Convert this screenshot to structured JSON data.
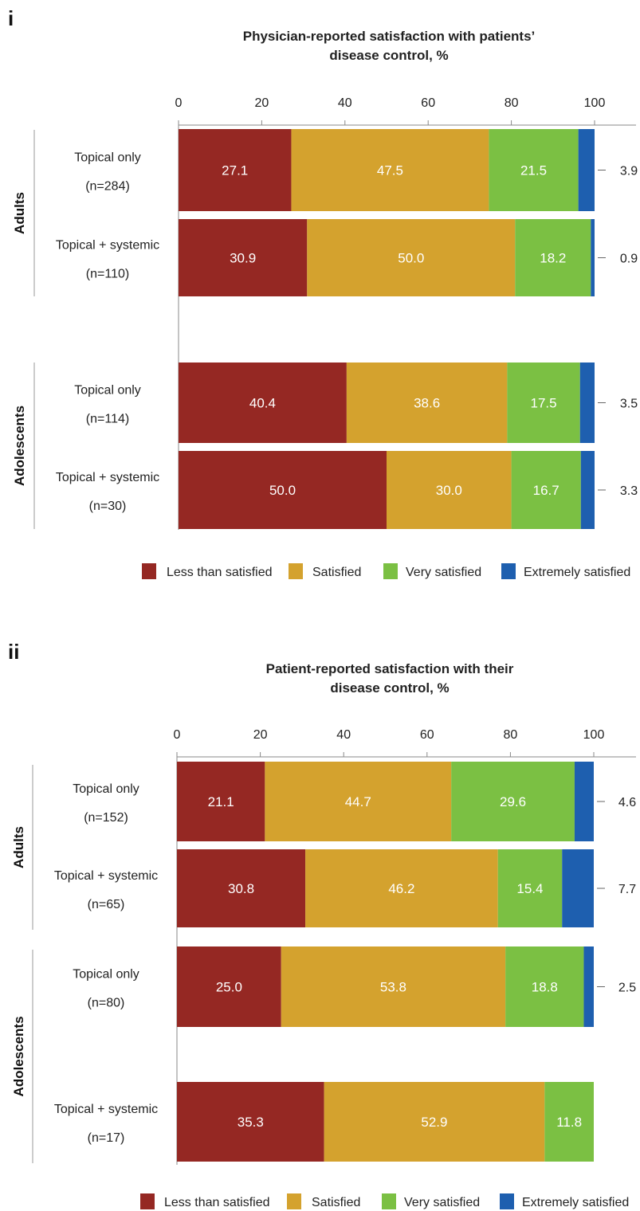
{
  "chart_data": [
    {
      "panel": "i",
      "type": "bar",
      "orientation": "horizontal",
      "stacked": true,
      "title": [
        "Physician-reported satisfaction with patients’",
        "disease control, %"
      ],
      "xlim": [
        0,
        100
      ],
      "xticks": [
        "0",
        "20",
        "40",
        "60",
        "80",
        "100"
      ],
      "legend": {
        "placement": "bottom",
        "entries": [
          "Less than satisfied",
          "Satisfied",
          "Very satisfied",
          "Extremely satisfied"
        ]
      },
      "groups": [
        {
          "name": "Adults",
          "rows": [
            {
              "label": "Topical only",
              "n": "(n=284)",
              "values": [
                27.1,
                47.5,
                21.5,
                3.9
              ],
              "labels": [
                "27.1",
                "47.5",
                "21.5",
                "3.9"
              ]
            },
            {
              "label": "Topical + systemic",
              "n": "(n=110)",
              "values": [
                30.9,
                50.0,
                18.2,
                0.9
              ],
              "labels": [
                "30.9",
                "50.0",
                "18.2",
                "0.9"
              ]
            }
          ]
        },
        {
          "name": "Adolescents",
          "rows": [
            {
              "label": "Topical only",
              "n": "(n=114)",
              "values": [
                40.4,
                38.6,
                17.5,
                3.5
              ],
              "labels": [
                "40.4",
                "38.6",
                "17.5",
                "3.5"
              ]
            },
            {
              "label": "Topical + systemic",
              "n": "(n=30)",
              "values": [
                50.0,
                30.0,
                16.7,
                3.3
              ],
              "labels": [
                "50.0",
                "30.0",
                "16.7",
                "3.3"
              ]
            }
          ]
        }
      ]
    },
    {
      "panel": "ii",
      "type": "bar",
      "orientation": "horizontal",
      "stacked": true,
      "title": [
        "Patient-reported satisfaction with their",
        "disease control, %"
      ],
      "xlim": [
        0,
        100
      ],
      "xticks": [
        "0",
        "20",
        "40",
        "60",
        "80",
        "100"
      ],
      "legend": {
        "placement": "bottom",
        "entries": [
          "Less than satisfied",
          "Satisfied",
          "Very satisfied",
          "Extremely satisfied"
        ]
      },
      "groups": [
        {
          "name": "Adults",
          "rows": [
            {
              "label": "Topical only",
              "n": "(n=152)",
              "values": [
                21.1,
                44.7,
                29.6,
                4.6
              ],
              "labels": [
                "21.1",
                "44.7",
                "29.6",
                "4.6"
              ]
            },
            {
              "label": "Topical + systemic",
              "n": "(n=65)",
              "values": [
                30.8,
                46.2,
                15.4,
                7.7
              ],
              "labels": [
                "30.8",
                "46.2",
                "15.4",
                "7.7"
              ]
            }
          ]
        },
        {
          "name": "Adolescents",
          "rows": [
            {
              "label": "Topical only",
              "n": "(n=80)",
              "values": [
                25.0,
                53.8,
                18.8,
                2.5
              ],
              "labels": [
                "25.0",
                "53.8",
                "18.8",
                "2.5"
              ]
            },
            {
              "label": "Topical + systemic",
              "n": "(n=17)",
              "values": [
                35.3,
                52.9,
                11.8,
                0
              ],
              "labels": [
                "35.3",
                "52.9",
                "11.8",
                ""
              ]
            }
          ]
        }
      ]
    }
  ],
  "colors": [
    "#952823",
    "#D4A22E",
    "#7BC043",
    "#1E5FAF"
  ]
}
